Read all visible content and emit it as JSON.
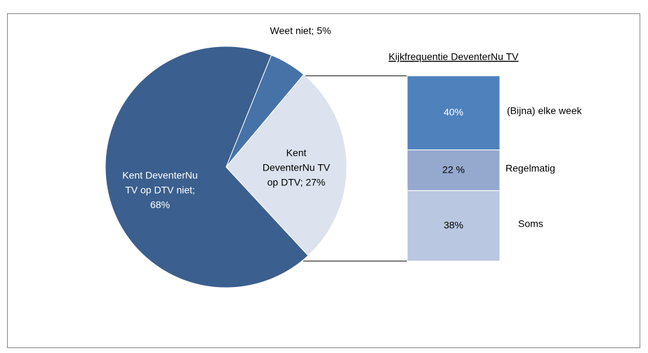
{
  "chart_data": [
    {
      "type": "pie",
      "categories": [
        "Weet niet",
        "Kent DeventerNu TV op DTV",
        "Kent DeventerNu TV op DTV niet"
      ],
      "label_lines": [
        [
          "Weet niet; 5%"
        ],
        [
          "Kent",
          "DeventerNu TV",
          "op DTV; 27%"
        ],
        [
          "Kent DeventerNu",
          "TV op DTV niet;",
          "68%"
        ]
      ],
      "values": [
        5,
        27,
        68
      ],
      "colors": [
        "#4672a8",
        "#dce3ef",
        "#3b5f8e"
      ]
    },
    {
      "type": "stacked_bar",
      "title": "Kijkfrequentie DeventerNu TV",
      "categories": [
        "(Bijna) elke week",
        "Regelmatig",
        "Soms"
      ],
      "values": [
        40,
        22,
        38
      ],
      "value_labels": [
        "40%",
        "22 %",
        "38%"
      ],
      "colors": [
        "#4f81bd",
        "#95a9cf",
        "#b9c7e1"
      ]
    }
  ]
}
